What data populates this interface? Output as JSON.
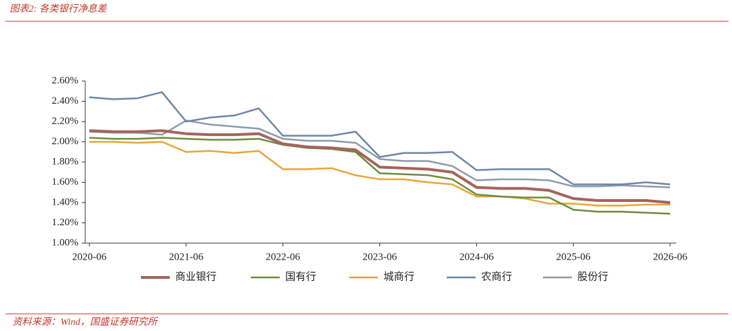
{
  "header": {
    "title": "图表2: 各类银行净息差"
  },
  "chart_data": {
    "type": "line",
    "categories": [
      "2020-06",
      null,
      null,
      null,
      "2021-06",
      null,
      null,
      null,
      "2022-06",
      null,
      null,
      null,
      "2023-06",
      null,
      null,
      null,
      "2024-06",
      null,
      null,
      null,
      "2025-06",
      null,
      null,
      null,
      "2026-06"
    ],
    "series": [
      {
        "name": "商业银行",
        "color": "#a5645c",
        "width": 4,
        "values": [
          2.11,
          2.1,
          2.1,
          2.11,
          2.08,
          2.07,
          2.07,
          2.08,
          1.98,
          1.95,
          1.94,
          1.92,
          1.75,
          1.74,
          1.73,
          1.7,
          1.55,
          1.54,
          1.54,
          1.52,
          1.44,
          1.42,
          1.42,
          1.42,
          1.4
        ]
      },
      {
        "name": "国有行",
        "color": "#6b8c3c",
        "width": 2.5,
        "values": [
          2.04,
          2.03,
          2.03,
          2.04,
          2.03,
          2.02,
          2.02,
          2.03,
          1.97,
          1.94,
          1.93,
          1.9,
          1.69,
          1.68,
          1.67,
          1.63,
          1.48,
          1.46,
          1.45,
          1.45,
          1.33,
          1.31,
          1.31,
          1.3,
          1.29
        ]
      },
      {
        "name": "城商行",
        "color": "#e8a53a",
        "width": 2.5,
        "values": [
          2.0,
          2.0,
          1.99,
          2.0,
          1.9,
          1.91,
          1.89,
          1.91,
          1.73,
          1.73,
          1.74,
          1.67,
          1.63,
          1.63,
          1.6,
          1.58,
          1.46,
          1.46,
          1.44,
          1.39,
          1.39,
          1.37,
          1.37,
          1.38,
          1.38
        ]
      },
      {
        "name": "农商行",
        "color": "#6d87a8",
        "width": 2.5,
        "values": [
          2.44,
          2.42,
          2.43,
          2.49,
          2.2,
          2.24,
          2.26,
          2.33,
          2.06,
          2.06,
          2.06,
          2.1,
          1.85,
          1.89,
          1.89,
          1.9,
          1.72,
          1.73,
          1.73,
          1.73,
          1.58,
          1.58,
          1.58,
          1.6,
          1.58
        ]
      },
      {
        "name": "股份行",
        "color": "#8e9ba6",
        "width": 2.5,
        "values": [
          2.1,
          2.09,
          2.09,
          2.07,
          2.21,
          2.17,
          2.15,
          2.13,
          2.03,
          2.01,
          2.01,
          1.99,
          1.83,
          1.81,
          1.81,
          1.76,
          1.62,
          1.63,
          1.63,
          1.62,
          1.56,
          1.56,
          1.57,
          1.56,
          1.55
        ]
      }
    ],
    "ylim": [
      1.0,
      2.6
    ],
    "yticks": [
      {
        "value": 1.0,
        "label": "1.00%"
      },
      {
        "value": 1.2,
        "label": "1.20%"
      },
      {
        "value": 1.4,
        "label": "1.40%"
      },
      {
        "value": 1.6,
        "label": "1.60%"
      },
      {
        "value": 1.8,
        "label": "1.80%"
      },
      {
        "value": 2.0,
        "label": "2.00%"
      },
      {
        "value": 2.2,
        "label": "2.20%"
      },
      {
        "value": 2.4,
        "label": "2.40%"
      },
      {
        "value": 2.6,
        "label": "2.60%"
      }
    ],
    "legend": "bottom"
  },
  "footer": {
    "source": "资料来源：Wind，国盛证券研究所"
  }
}
